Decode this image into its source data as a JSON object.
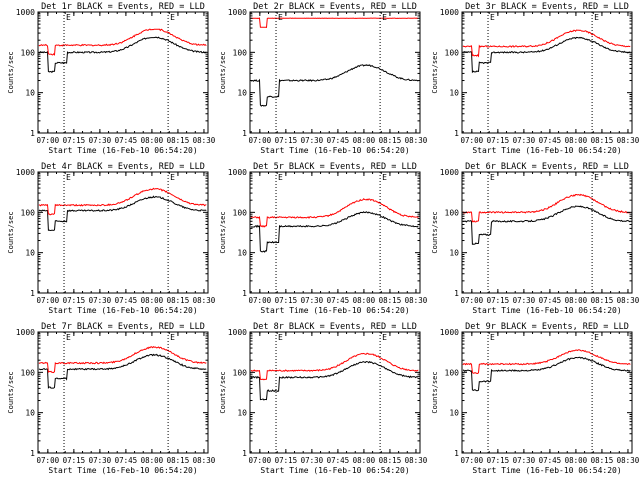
{
  "colors": {
    "events": "#000000",
    "lld": "#ff0000",
    "axis": "#000000",
    "background": "#ffffff"
  },
  "axes_common": {
    "ylabel": "Counts/sec",
    "xlabel": "Start Time (16-Feb-10 06:54:20)",
    "xtick_labels": [
      "07:00",
      "07:15",
      "07:30",
      "07:45",
      "08:00",
      "08:15",
      "08:30"
    ],
    "ytick_labels": [
      "1",
      "10",
      "100",
      "1000"
    ],
    "marker_label": "E"
  },
  "chart_data": [
    {
      "type": "line",
      "title": "Det 1r BLACK = Events, RED = LLD",
      "xlabel": "Start Time (16-Feb-10 06:54:20)",
      "ylabel": "Counts/sec",
      "xlim_minutes": [
        0,
        98
      ],
      "ylim": [
        1,
        1000
      ],
      "yscale": "log",
      "marker_lines_minutes": [
        15,
        75
      ],
      "series": [
        {
          "name": "Events",
          "color": "#000000",
          "base": 100,
          "step_low": 55,
          "bump_peak": 240
        },
        {
          "name": "LLD",
          "color": "#ff0000",
          "base": 150,
          "step_low": 150,
          "bump_peak": 380
        }
      ]
    },
    {
      "type": "line",
      "title": "Det 2r BLACK = Events, RED = LLD",
      "xlabel": "Start Time (16-Feb-10 06:54:20)",
      "ylabel": "Counts/sec",
      "xlim_minutes": [
        0,
        98
      ],
      "ylim": [
        1,
        1000
      ],
      "yscale": "log",
      "marker_lines_minutes": [
        15,
        75
      ],
      "series": [
        {
          "name": "Events",
          "color": "#000000",
          "base": 20,
          "step_low": 8,
          "bump_peak": 48
        },
        {
          "name": "LLD",
          "color": "#ff0000",
          "base": 700,
          "step_low": 700,
          "bump_peak": 700
        }
      ]
    },
    {
      "type": "line",
      "title": "Det 3r BLACK = Events, RED = LLD",
      "xlabel": "Start Time (16-Feb-10 06:54:20)",
      "ylabel": "Counts/sec",
      "xlim_minutes": [
        0,
        98
      ],
      "ylim": [
        1,
        1000
      ],
      "yscale": "log",
      "marker_lines_minutes": [
        15,
        75
      ],
      "series": [
        {
          "name": "Events",
          "color": "#000000",
          "base": 100,
          "step_low": 55,
          "bump_peak": 230
        },
        {
          "name": "LLD",
          "color": "#ff0000",
          "base": 140,
          "step_low": 140,
          "bump_peak": 350
        }
      ]
    },
    {
      "type": "line",
      "title": "Det 4r BLACK = Events, RED = LLD",
      "xlabel": "Start Time (16-Feb-10 06:54:20)",
      "ylabel": "Counts/sec",
      "xlim_minutes": [
        0,
        98
      ],
      "ylim": [
        1,
        1000
      ],
      "yscale": "log",
      "marker_lines_minutes": [
        15,
        75
      ],
      "series": [
        {
          "name": "Events",
          "color": "#000000",
          "base": 110,
          "step_low": 60,
          "bump_peak": 240
        },
        {
          "name": "LLD",
          "color": "#ff0000",
          "base": 150,
          "step_low": 150,
          "bump_peak": 380
        }
      ]
    },
    {
      "type": "line",
      "title": "Det 5r BLACK = Events, RED = LLD",
      "xlabel": "Start Time (16-Feb-10 06:54:20)",
      "ylabel": "Counts/sec",
      "xlim_minutes": [
        0,
        98
      ],
      "ylim": [
        1,
        1000
      ],
      "yscale": "log",
      "marker_lines_minutes": [
        15,
        75
      ],
      "series": [
        {
          "name": "Events",
          "color": "#000000",
          "base": 45,
          "step_low": 18,
          "bump_peak": 100
        },
        {
          "name": "LLD",
          "color": "#ff0000",
          "base": 75,
          "step_low": 75,
          "bump_peak": 210
        }
      ]
    },
    {
      "type": "line",
      "title": "Det 6r BLACK = Events, RED = LLD",
      "xlabel": "Start Time (16-Feb-10 06:54:20)",
      "ylabel": "Counts/sec",
      "xlim_minutes": [
        0,
        98
      ],
      "ylim": [
        1,
        1000
      ],
      "yscale": "log",
      "marker_lines_minutes": [
        15,
        75
      ],
      "series": [
        {
          "name": "Events",
          "color": "#000000",
          "base": 60,
          "step_low": 28,
          "bump_peak": 140
        },
        {
          "name": "LLD",
          "color": "#ff0000",
          "base": 100,
          "step_low": 100,
          "bump_peak": 270
        }
      ]
    },
    {
      "type": "line",
      "title": "Det 7r BLACK = Events, RED = LLD",
      "xlabel": "Start Time (16-Feb-10 06:54:20)",
      "ylabel": "Counts/sec",
      "xlim_minutes": [
        0,
        98
      ],
      "ylim": [
        1,
        1000
      ],
      "yscale": "log",
      "marker_lines_minutes": [
        15,
        75
      ],
      "series": [
        {
          "name": "Events",
          "color": "#000000",
          "base": 120,
          "step_low": 70,
          "bump_peak": 270
        },
        {
          "name": "LLD",
          "color": "#ff0000",
          "base": 170,
          "step_low": 170,
          "bump_peak": 420
        }
      ]
    },
    {
      "type": "line",
      "title": "Det 8r BLACK = Events, RED = LLD",
      "xlabel": "Start Time (16-Feb-10 06:54:20)",
      "ylabel": "Counts/sec",
      "xlim_minutes": [
        0,
        98
      ],
      "ylim": [
        1,
        1000
      ],
      "yscale": "log",
      "marker_lines_minutes": [
        15,
        75
      ],
      "series": [
        {
          "name": "Events",
          "color": "#000000",
          "base": 75,
          "step_low": 35,
          "bump_peak": 180
        },
        {
          "name": "LLD",
          "color": "#ff0000",
          "base": 110,
          "step_low": 110,
          "bump_peak": 290
        }
      ]
    },
    {
      "type": "line",
      "title": "Det 9r BLACK = Events, RED = LLD",
      "xlabel": "Start Time (16-Feb-10 06:54:20)",
      "ylabel": "Counts/sec",
      "xlim_minutes": [
        0,
        98
      ],
      "ylim": [
        1,
        1000
      ],
      "yscale": "log",
      "marker_lines_minutes": [
        15,
        75
      ],
      "series": [
        {
          "name": "Events",
          "color": "#000000",
          "base": 110,
          "step_low": 60,
          "bump_peak": 230
        },
        {
          "name": "LLD",
          "color": "#ff0000",
          "base": 160,
          "step_low": 160,
          "bump_peak": 350
        }
      ]
    }
  ]
}
